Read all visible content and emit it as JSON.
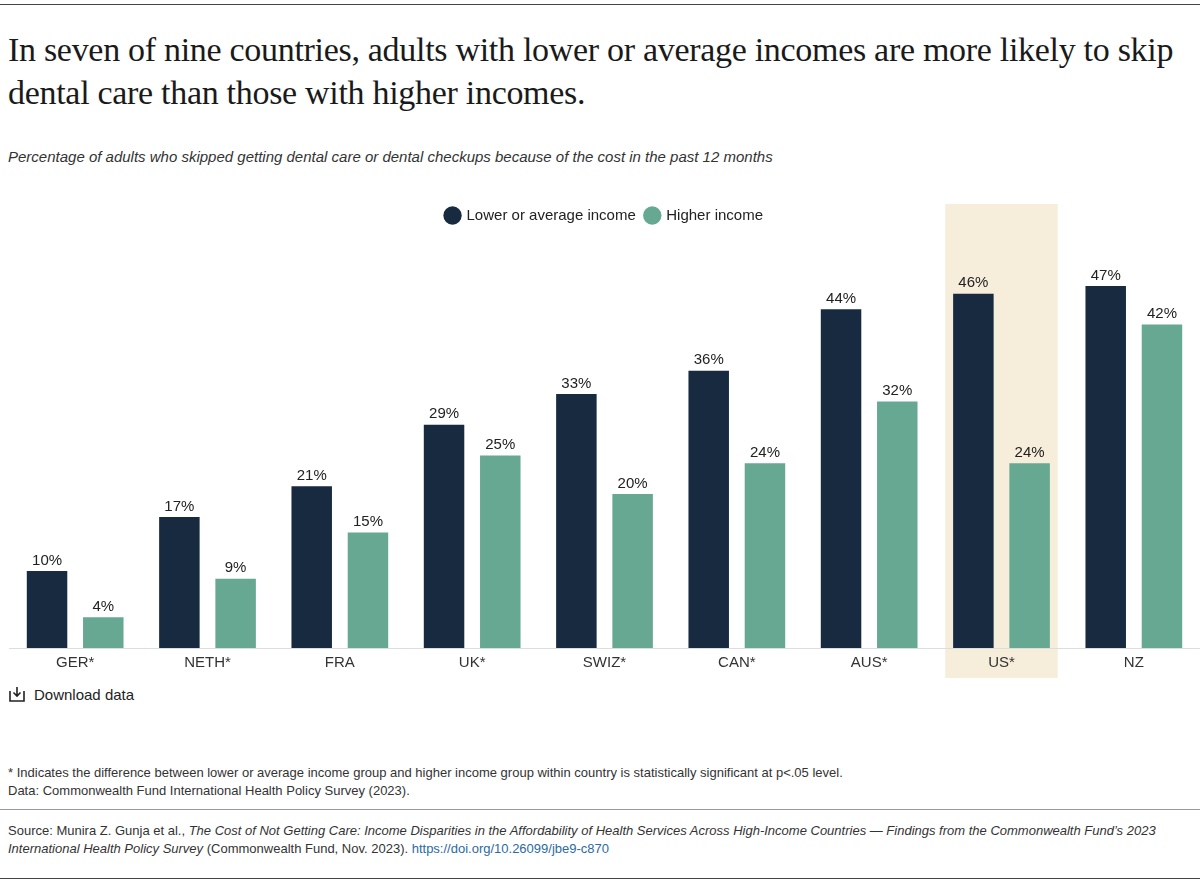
{
  "chart_data": {
    "type": "bar",
    "title": "In seven of nine countries, adults with lower or average incomes are more likely to skip dental care than those with higher incomes.",
    "subtitle": "Percentage of adults who skipped getting dental care or dental checkups because of the cost in the past 12 months",
    "categories": [
      "GER*",
      "NETH*",
      "FRA",
      "UK*",
      "SWIZ*",
      "CAN*",
      "AUS*",
      "US*",
      "NZ"
    ],
    "series": [
      {
        "name": "Lower or average income",
        "color": "#172a40",
        "values": [
          10,
          17,
          21,
          29,
          33,
          36,
          44,
          46,
          47
        ],
        "value_labels": [
          "10%",
          "17%",
          "21%",
          "29%",
          "33%",
          "36%",
          "44%",
          "46%",
          "47%"
        ]
      },
      {
        "name": "Higher income",
        "color": "#66a891",
        "values": [
          4,
          9,
          15,
          25,
          20,
          24,
          32,
          24,
          42
        ],
        "value_labels": [
          "4%",
          "9%",
          "15%",
          "25%",
          "20%",
          "24%",
          "32%",
          "24%",
          "42%"
        ]
      }
    ],
    "ylim": [
      0,
      50
    ],
    "tick_labels": "x",
    "grid": false,
    "legend": "top",
    "data_labels": true,
    "highlight": {
      "category": "US*",
      "color": "#f6eddb"
    },
    "download": "Download data",
    "notes": [
      "* Indicates the difference between lower or average income group and higher income group within country is statistically significant at p<.05 level.",
      "Data: Commonwealth Fund International Health Policy Survey (2023)."
    ],
    "source": {
      "prefix": "Source: Munira Z. Gunja et al., ",
      "title": "The Cost of Not Getting Care: Income Disparities in the Affordability of Health Services Across High-Income Countries — Findings from the Commonwealth Fund’s 2023 International Health Policy Survey",
      "suffix": " (Commonwealth Fund, Nov. 2023). ",
      "link": "https://doi.org/10.26099/jbe9-c870"
    }
  }
}
